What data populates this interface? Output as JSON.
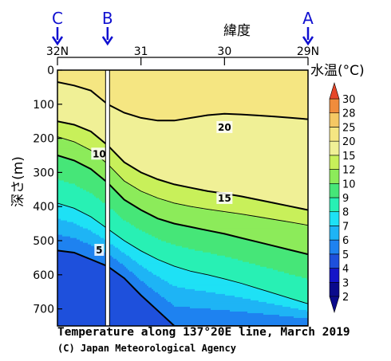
{
  "chart_data": {
    "type": "heatmap",
    "title": "Temperature along 137°20E line, March 2019",
    "credit": "(C) Japan Meteorological Agency",
    "xlabel": "緯度",
    "ylabel": "深さ(m)",
    "colorbar_label": "水温(°C)",
    "x_reversed": true,
    "xlim": [
      32,
      29
    ],
    "ylim": [
      750,
      0
    ],
    "x_ticks": [
      {
        "value": 32,
        "label": "32N"
      },
      {
        "value": 31,
        "label": "31"
      },
      {
        "value": 30,
        "label": "30"
      },
      {
        "value": 29,
        "label": "29N"
      }
    ],
    "y_ticks": [
      0,
      100,
      200,
      300,
      400,
      500,
      600,
      700
    ],
    "stations": [
      {
        "label": "C",
        "lat": 32.0
      },
      {
        "label": "B",
        "lat": 31.4
      },
      {
        "label": "A",
        "lat": 29.0
      }
    ],
    "divider_lat": 31.4,
    "levels": [
      2,
      3,
      4,
      5,
      6,
      7,
      8,
      9,
      10,
      12,
      15,
      20,
      25,
      28,
      30
    ],
    "colors": [
      "#0a0a8c",
      "#1414c8",
      "#1e50dc",
      "#1e82f0",
      "#1eb4f5",
      "#1ee1f5",
      "#28f0b4",
      "#46e678",
      "#8ceb5a",
      "#c8f05a",
      "#f0f096",
      "#f5e682",
      "#f5c864",
      "#f08c3c",
      "#e64628"
    ],
    "x_lats": [
      32.0,
      31.8,
      31.6,
      31.4,
      31.2,
      31.0,
      30.8,
      30.6,
      30.4,
      30.2,
      30.0,
      29.8,
      29.6,
      29.4,
      29.2,
      29.0
    ],
    "isotherm_depths": [
      {
        "temp": 5,
        "depths": [
          529,
          535,
          555,
          575,
          610,
          660,
          705,
          750,
          750,
          750,
          750,
          750,
          750,
          750,
          750,
          750
        ]
      },
      {
        "temp": 8,
        "depths": [
          390,
          405,
          430,
          465,
          500,
          530,
          555,
          575,
          590,
          600,
          612,
          625,
          640,
          655,
          670,
          685
        ]
      },
      {
        "temp": 10,
        "depths": [
          250,
          265,
          290,
          330,
          380,
          410,
          435,
          450,
          460,
          470,
          480,
          492,
          504,
          516,
          528,
          540
        ]
      },
      {
        "temp": 12,
        "depths": [
          195,
          210,
          235,
          275,
          325,
          355,
          375,
          390,
          400,
          408,
          415,
          422,
          430,
          438,
          446,
          455
        ]
      },
      {
        "temp": 15,
        "depths": [
          150,
          160,
          180,
          220,
          270,
          300,
          320,
          335,
          345,
          355,
          362,
          370,
          380,
          390,
          400,
          410
        ]
      },
      {
        "temp": 20,
        "depths": [
          35,
          45,
          60,
          100,
          125,
          140,
          148,
          148,
          140,
          132,
          128,
          130,
          133,
          136,
          140,
          144
        ]
      }
    ],
    "isotherm_labels": [
      {
        "temp": 20,
        "text": "20",
        "lat": 30.0,
        "depth": 168
      },
      {
        "temp": 10,
        "text": "10",
        "lat": 31.5,
        "depth": 246
      },
      {
        "temp": 15,
        "text": "15",
        "lat": 30.0,
        "depth": 376
      },
      {
        "temp": 5,
        "text": "5",
        "lat": 31.5,
        "depth": 528
      }
    ],
    "colorbar_ticks": [
      2,
      3,
      4,
      5,
      6,
      7,
      8,
      9,
      10,
      12,
      15,
      20,
      25,
      28,
      30
    ]
  }
}
